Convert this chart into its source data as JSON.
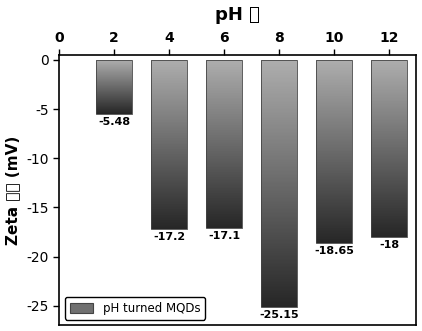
{
  "categories": [
    2,
    4,
    6,
    8,
    10,
    12
  ],
  "values": [
    -5.48,
    -17.2,
    -17.1,
    -25.15,
    -18.65,
    -18
  ],
  "labels": [
    "-5.48",
    "-17.2",
    "-17.1",
    "-25.15",
    "-18.65",
    "-18"
  ],
  "title": "pH 値",
  "ylabel": "Zeta 电势 (mV)",
  "xlabel_ticks": [
    0,
    2,
    4,
    6,
    8,
    10,
    12
  ],
  "ylim": [
    -27,
    0.5
  ],
  "yticks": [
    0,
    -5,
    -10,
    -15,
    -20,
    -25
  ],
  "legend_label": "pH turned MQDs",
  "bar_width": 1.3,
  "top_gray": 0.68,
  "bottom_gray": 0.15,
  "background_color": "#ffffff",
  "title_fontsize": 13,
  "label_fontsize": 11,
  "tick_fontsize": 10,
  "value_fontsize": 8
}
